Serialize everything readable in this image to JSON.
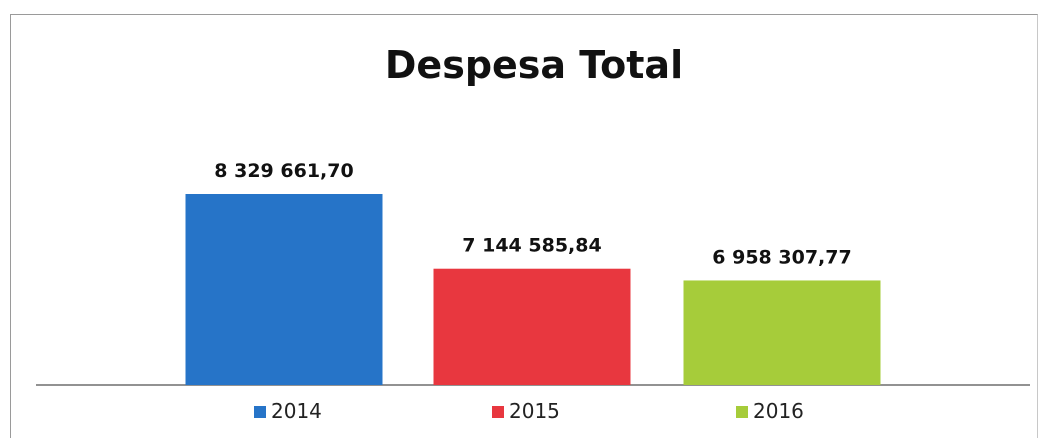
{
  "chart_data": {
    "type": "bar",
    "title": "Despesa Total",
    "xlabel": "",
    "ylabel": "",
    "categories": [
      "2014",
      "2015",
      "2016"
    ],
    "values": [
      8329661.7,
      7144585.84,
      6958307.77
    ],
    "value_labels": [
      "8 329 661,70",
      "7 144 585,84",
      "6 958 307,77"
    ],
    "colors": [
      "#2674c8",
      "#e8373f",
      "#a6cc3a"
    ],
    "ylim": [
      5300000,
      9000000
    ],
    "grid": false,
    "legend_position": "bottom"
  }
}
